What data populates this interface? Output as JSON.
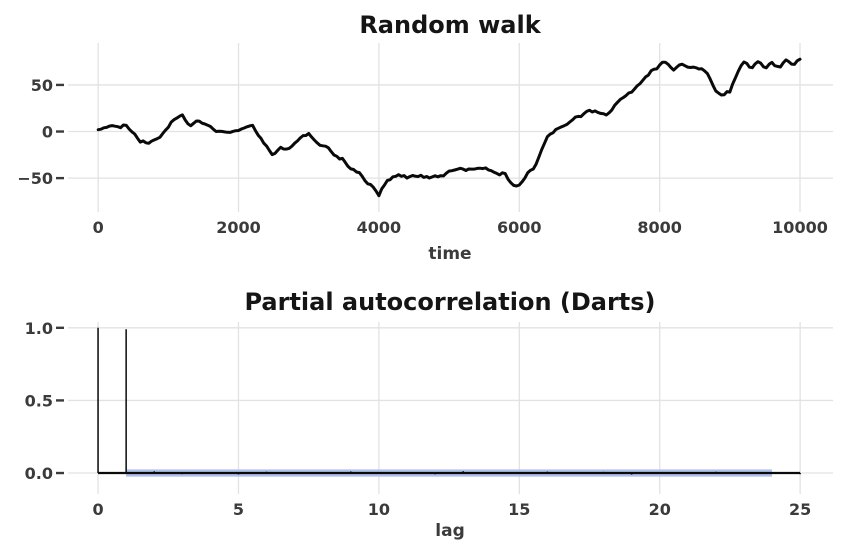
{
  "style": {
    "background": "#ffffff",
    "grid_color": "#e2e2e2",
    "tick_color": "#3b3b3b",
    "title_color": "#151515",
    "line_color": "#0a0a0a",
    "band_color": "#b0c0ec",
    "stem_color": "#0a0a0a"
  },
  "chart_data": [
    {
      "type": "line",
      "title": "Random walk",
      "xlabel": "time",
      "ylabel": "",
      "grid": true,
      "legend": "none",
      "xlim": [
        -430,
        10470
      ],
      "ylim": [
        -81,
        95
      ],
      "x_tick_vals": [
        0,
        2000,
        4000,
        6000,
        8000,
        10000
      ],
      "x_tick_labels": [
        "0",
        "2000",
        "4000",
        "6000",
        "8000",
        "10000"
      ],
      "y_tick_vals": [
        -50,
        0,
        50
      ],
      "y_tick_labels": [
        "−50",
        "0",
        "50"
      ],
      "series": [
        {
          "name": "random walk",
          "anchor_step": 100,
          "anchors_x_start": 0,
          "anchors_x_end": 10000,
          "values": [
            1,
            4,
            8,
            3,
            6,
            0,
            -9,
            -12,
            -6,
            -3,
            2,
            13,
            19,
            7,
            15,
            9,
            3,
            -3,
            1,
            0,
            4,
            6,
            4,
            -8,
            -17,
            -24,
            -18,
            -22,
            -15,
            -9,
            -3,
            -9,
            -15,
            -21,
            -28,
            -31,
            -39,
            -44,
            -52,
            -58,
            -68,
            -55,
            -48,
            -45,
            -49,
            -45,
            -46,
            -48,
            -46,
            -46,
            -44,
            -40,
            -38,
            -40,
            -37,
            -39,
            -44,
            -47,
            -45,
            -56,
            -58,
            -45,
            -38,
            -24,
            -8,
            0,
            4,
            8,
            12,
            16,
            20,
            22,
            19,
            20,
            30,
            36,
            41,
            48,
            55,
            64,
            70,
            74,
            68,
            71,
            66,
            66,
            64,
            60,
            45,
            42,
            44,
            60,
            74,
            68,
            76,
            68,
            75,
            70,
            77,
            73,
            78
          ]
        }
      ],
      "noise": {
        "seed": 20,
        "amplitude": 3.0,
        "sample_step": 40
      }
    },
    {
      "type": "stem",
      "title": "Partial autocorrelation (Darts)",
      "xlabel": "lag",
      "ylabel": "",
      "grid": true,
      "legend": "none",
      "xlim": [
        -1.07,
        26.17
      ],
      "ylim": [
        -0.11,
        1.04
      ],
      "x_tick_vals": [
        0,
        5,
        10,
        15,
        20,
        25
      ],
      "x_tick_labels": [
        "0",
        "5",
        "10",
        "15",
        "20",
        "25"
      ],
      "y_tick_vals": [
        0.0,
        0.5,
        1.0
      ],
      "y_tick_labels": [
        "0.0",
        "0.5",
        "1.0"
      ],
      "pacf_lags": [
        0,
        1,
        2,
        3,
        4,
        5,
        6,
        7,
        8,
        9,
        10,
        11,
        12,
        13,
        14,
        15,
        16,
        17,
        18,
        19,
        20,
        21,
        22,
        23,
        24,
        25
      ],
      "pacf_values": [
        1.0,
        0.99,
        0.012,
        -0.008,
        0.005,
        -0.01,
        0.009,
        0.004,
        -0.006,
        0.011,
        -0.004,
        0.007,
        -0.009,
        0.013,
        0.003,
        -0.007,
        0.01,
        -0.005,
        0.008,
        -0.011,
        0.006,
        -0.003,
        0.009,
        -0.006,
        0.004,
        -0.008
      ],
      "conf_interval": 0.025,
      "band_lag_range": [
        1,
        24
      ],
      "zero_line_range": [
        0,
        25
      ]
    }
  ]
}
